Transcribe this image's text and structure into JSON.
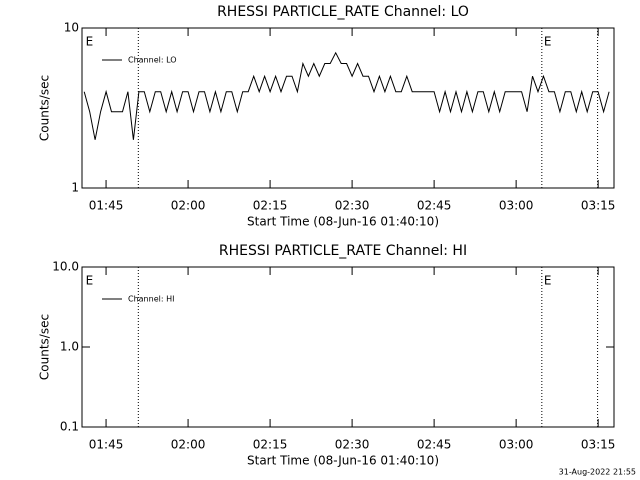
{
  "chart_data": [
    {
      "type": "line",
      "title": "RHESSI PARTICLE_RATE Channel: LO",
      "xlabel": "Start Time (08-Jun-16 01:40:10)",
      "ylabel": "Counts/sec",
      "log_y": true,
      "xlim": [
        100.6,
        197.9
      ],
      "ylim": [
        1,
        10
      ],
      "yticks": [
        1,
        10
      ],
      "xticks": [
        {
          "value": 105,
          "label": "01:45"
        },
        {
          "value": 120,
          "label": "02:00"
        },
        {
          "value": 135,
          "label": "02:15"
        },
        {
          "value": 150,
          "label": "02:30"
        },
        {
          "value": 165,
          "label": "02:45"
        },
        {
          "value": 180,
          "label": "03:00"
        },
        {
          "value": 195,
          "label": "03:15"
        }
      ],
      "events": [
        110.9,
        184.7,
        194.9
      ],
      "event_labels": [
        {
          "x": 100.9,
          "text": "E"
        },
        {
          "x": 184.7,
          "text": "E"
        }
      ],
      "x": [
        101,
        102,
        103,
        104,
        105,
        106,
        107,
        108,
        109,
        110,
        111,
        112,
        113,
        114,
        115,
        116,
        117,
        118,
        119,
        120,
        121,
        122,
        123,
        124,
        125,
        126,
        127,
        128,
        129,
        130,
        131,
        132,
        133,
        134,
        135,
        136,
        137,
        138,
        139,
        140,
        141,
        142,
        143,
        144,
        145,
        146,
        147,
        148,
        149,
        150,
        151,
        152,
        153,
        154,
        155,
        156,
        157,
        158,
        159,
        160,
        161,
        162,
        163,
        164,
        165,
        166,
        167,
        168,
        169,
        170,
        171,
        172,
        173,
        174,
        175,
        176,
        177,
        178,
        179,
        180,
        181,
        182,
        183,
        184,
        185,
        186,
        187,
        188,
        189,
        190,
        191,
        192,
        193,
        194,
        195,
        196,
        197
      ],
      "series": [
        {
          "name": "Channel: LO",
          "color": "#000000",
          "values": [
            4,
            3,
            2,
            3,
            4,
            3,
            3,
            3,
            4,
            2,
            4,
            4,
            3,
            4,
            4,
            3,
            4,
            3,
            4,
            4,
            3,
            4,
            4,
            3,
            4,
            3,
            4,
            4,
            3,
            4,
            4,
            5,
            4,
            5,
            4,
            5,
            4,
            5,
            5,
            4,
            6,
            5,
            6,
            5,
            6,
            6,
            7,
            6,
            6,
            5,
            6,
            5,
            5,
            4,
            5,
            4,
            5,
            4,
            4,
            5,
            4,
            4,
            4,
            4,
            4,
            3,
            4,
            3,
            4,
            3,
            4,
            3,
            4,
            4,
            3,
            4,
            3,
            4,
            4,
            4,
            4,
            3,
            5,
            4,
            5,
            4,
            4,
            3,
            4,
            4,
            3,
            4,
            3,
            4,
            4,
            3,
            4
          ]
        }
      ]
    },
    {
      "type": "line",
      "title": "RHESSI PARTICLE_RATE Channel: HI",
      "xlabel": "Start Time (08-Jun-16 01:40:10)",
      "ylabel": "Counts/sec",
      "log_y": true,
      "xlim": [
        100.6,
        197.9
      ],
      "ylim": [
        0.1,
        10
      ],
      "yticks": [
        0.1,
        {
          "value": 1,
          "label": "1.0"
        },
        {
          "value": 10,
          "label": "10.0"
        }
      ],
      "xticks": [
        {
          "value": 105,
          "label": "01:45"
        },
        {
          "value": 120,
          "label": "02:00"
        },
        {
          "value": 135,
          "label": "02:15"
        },
        {
          "value": 150,
          "label": "02:30"
        },
        {
          "value": 165,
          "label": "02:45"
        },
        {
          "value": 180,
          "label": "03:00"
        },
        {
          "value": 195,
          "label": "03:15"
        }
      ],
      "events": [
        110.9,
        184.7,
        194.9
      ],
      "event_labels": [
        {
          "x": 100.9,
          "text": "E"
        },
        {
          "x": 184.7,
          "text": "E"
        }
      ],
      "x": [],
      "series": [
        {
          "name": "Channel: HI",
          "color": "#000000",
          "values": []
        }
      ]
    }
  ],
  "footer": "31-Aug-2022 21:55"
}
